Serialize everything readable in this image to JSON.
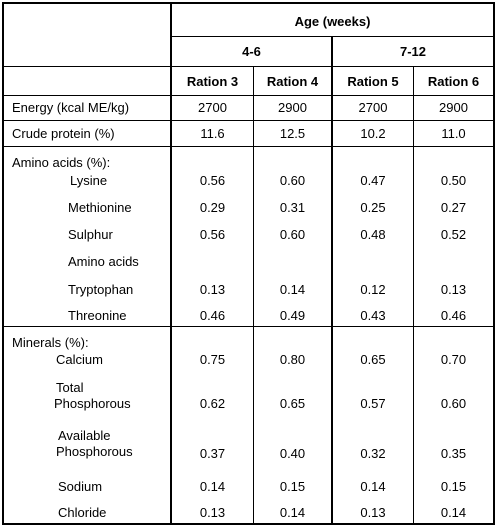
{
  "header": {
    "age_label": "Age (weeks)",
    "group_1": "4-6",
    "group_2": "7-12",
    "rations": [
      "Ration 3",
      "Ration 4",
      "Ration 5",
      "Ration 6"
    ]
  },
  "rows": {
    "energy": {
      "label": "Energy (kcal ME/kg)",
      "values": [
        "2700",
        "2900",
        "2700",
        "2900"
      ]
    },
    "crude_protein": {
      "label": "Crude protein (%)",
      "values": [
        "11.6",
        "12.5",
        "10.2",
        "11.0"
      ]
    }
  },
  "amino_acids": {
    "heading": "Amino acids (%):",
    "lysine": {
      "label": "Lysine",
      "values": [
        "0.56",
        "0.60",
        "0.47",
        "0.50"
      ]
    },
    "methionine": {
      "label": "Methionine",
      "values": [
        "0.29",
        "0.31",
        "0.25",
        "0.27"
      ]
    },
    "sulphur": {
      "label": "Sulphur",
      "values": [
        "0.56",
        "0.60",
        "0.48",
        "0.52"
      ]
    },
    "amino_acids_sub": {
      "label": "Amino acids"
    },
    "tryptophan": {
      "label": "Tryptophan",
      "values": [
        "0.13",
        "0.14",
        "0.12",
        "0.13"
      ]
    },
    "threonine": {
      "label": "Threonine",
      "values": [
        "0.46",
        "0.49",
        "0.43",
        "0.46"
      ]
    }
  },
  "minerals": {
    "heading": "Minerals (%):",
    "calcium": {
      "label": "Calcium",
      "values": [
        "0.75",
        "0.80",
        "0.65",
        "0.70"
      ]
    },
    "total_p": {
      "label_1": "Total",
      "label_2": "Phosphorous",
      "values": [
        "0.62",
        "0.65",
        "0.57",
        "0.60"
      ]
    },
    "available_p": {
      "label_1": "Available",
      "label_2": "Phosphorous",
      "values": [
        "0.37",
        "0.40",
        "0.32",
        "0.35"
      ]
    },
    "sodium": {
      "label": "Sodium",
      "values": [
        "0.14",
        "0.15",
        "0.14",
        "0.15"
      ]
    },
    "chloride": {
      "label": "Chloride",
      "values": [
        "0.13",
        "0.14",
        "0.13",
        "0.14"
      ]
    }
  }
}
